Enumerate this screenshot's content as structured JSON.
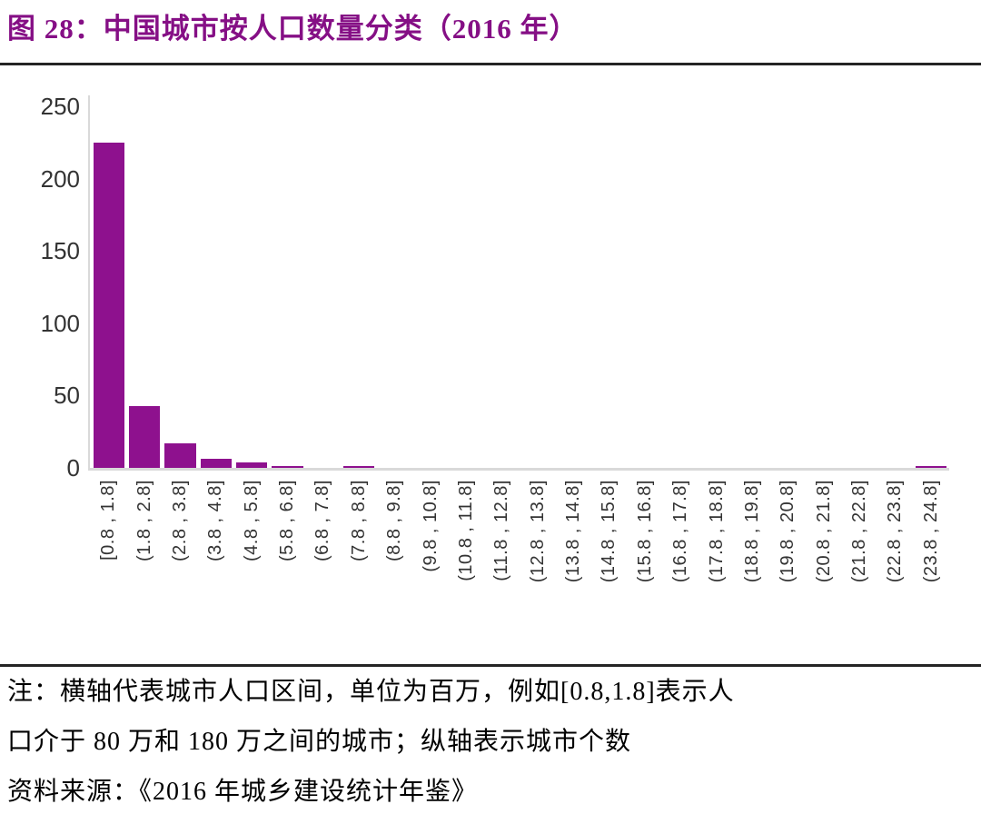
{
  "title": "图 28：中国城市按人口数量分类（2016 年）",
  "colors": {
    "title_accent": "#850F85",
    "bar_fill": "#8E118E",
    "axis_line": "#D9D9D9",
    "tick_label": "#333333",
    "rule": "#242424"
  },
  "chart_data": {
    "type": "bar",
    "title": "图 28：中国城市按人口数量分类（2016 年）",
    "xlabel": "",
    "ylabel": "",
    "ylim": [
      0,
      250
    ],
    "yticks": [
      0,
      50,
      100,
      150,
      200,
      250
    ],
    "grid": false,
    "legend": null,
    "bar_color": "#8E118E",
    "categories": [
      "[0.8 , 1.8]",
      "(1.8 , 2.8]",
      "(2.8 , 3.8]",
      "(3.8 , 4.8]",
      "(4.8 , 5.8]",
      "(5.8 , 6.8]",
      "(6.8 , 7.8]",
      "(7.8 , 8.8]",
      "(8.8 , 9.8]",
      "(9.8 , 10.8]",
      "(10.8 , 11.8]",
      "(11.8 , 12.8]",
      "(12.8 , 13.8]",
      "(13.8 , 14.8]",
      "(14.8 , 15.8]",
      "(15.8 , 16.8]",
      "(16.8 , 17.8]",
      "(17.8 , 18.8]",
      "(18.8 , 19.8]",
      "(19.8 , 20.8]",
      "(20.8 , 21.8]",
      "(21.8 , 22.8]",
      "(22.8 , 23.8]",
      "(23.8 , 24.8]"
    ],
    "values": [
      225,
      43,
      17,
      6,
      4,
      1,
      0,
      1,
      0,
      0,
      0,
      0,
      0,
      0,
      0,
      0,
      0,
      0,
      0,
      0,
      0,
      0,
      0,
      1
    ]
  },
  "notes": {
    "line1": "注：横轴代表城市人口区间，单位为百万，例如[0.8,1.8]表示人",
    "line2": "口介于 80 万和 180 万之间的城市；纵轴表示城市个数",
    "line3": "资料来源：《2016 年城乡建设统计年鉴》"
  }
}
